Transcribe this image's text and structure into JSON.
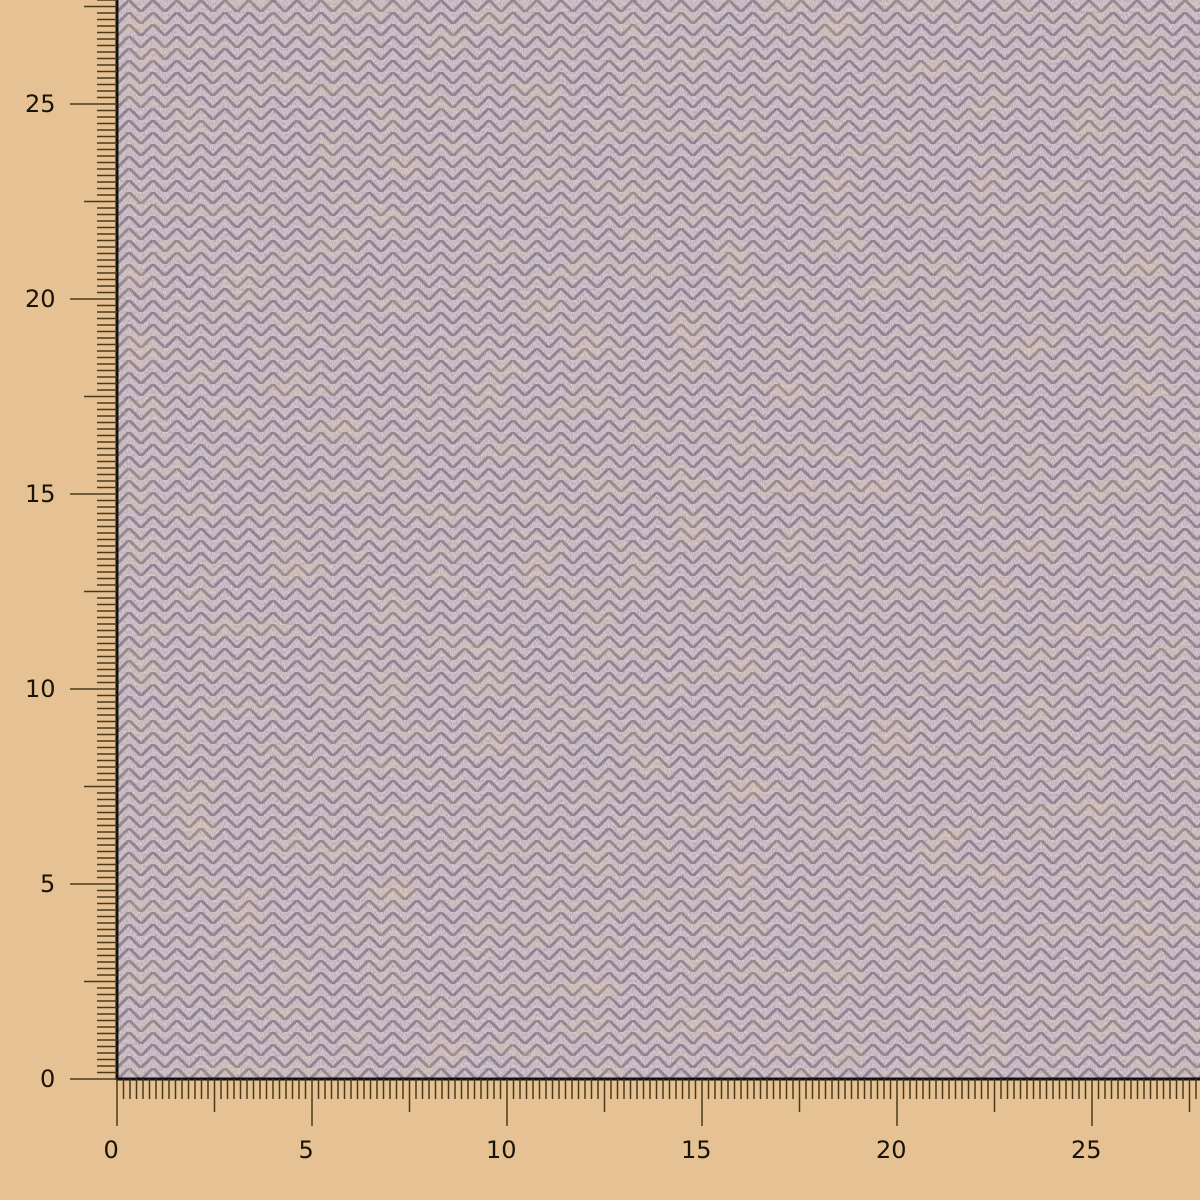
{
  "image": {
    "subject": "fabric swatch",
    "colors": {
      "background": "#e5c193",
      "fabric_dark": "#5a5060",
      "fabric_light": "#c8b4a8",
      "fabric_accent": "#d4a23a",
      "ruler": "#4a3a1a"
    }
  },
  "ruler": {
    "x_labels": [
      "0",
      "5",
      "10",
      "15",
      "20",
      "25"
    ],
    "y_labels": [
      "0",
      "5",
      "10",
      "15",
      "20",
      "25"
    ]
  }
}
